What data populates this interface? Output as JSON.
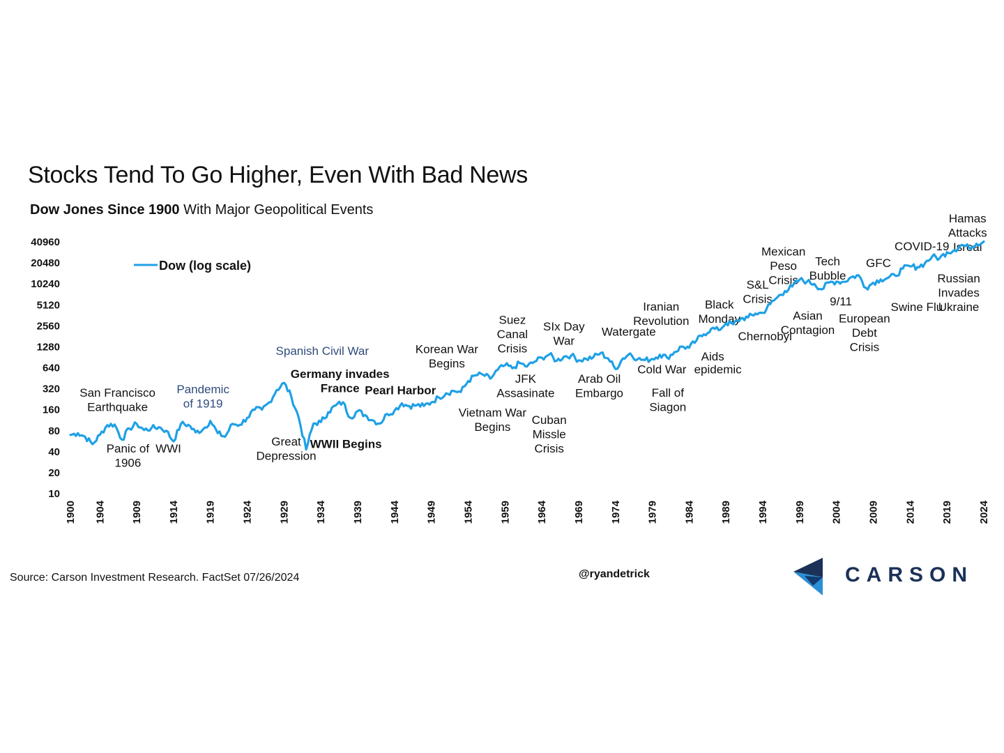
{
  "header": {
    "title": "Stocks Tend To Go Higher, Even With Bad News",
    "subtitle_bold": "Dow Jones Since 1900",
    "subtitle_rest": " With Major Geopolitical Events"
  },
  "footer": {
    "source": "Source: Carson Investment Research. FactSet 07/26/2024",
    "handle": "@ryandetrick",
    "logo_text": "CARSON"
  },
  "colors": {
    "line": "#1fa0e6",
    "logo_dark": "#1b3157",
    "logo_light": "#2b8fd6"
  },
  "chart_data": {
    "type": "line",
    "y_scale": "log2",
    "ylim": [
      10,
      40960
    ],
    "yticks": [
      "40960",
      "20480",
      "10240",
      "5120",
      "2560",
      "1280",
      "640",
      "320",
      "160",
      "80",
      "40",
      "20",
      "10"
    ],
    "xlim": [
      1900,
      2024
    ],
    "xticks": [
      "1900",
      "1904",
      "1909",
      "1914",
      "1919",
      "1924",
      "1929",
      "1934",
      "1939",
      "1944",
      "1949",
      "1954",
      "1959",
      "1964",
      "1969",
      "1974",
      "1979",
      "1984",
      "1989",
      "1994",
      "1999",
      "2004",
      "2009",
      "2014",
      "2019",
      "2024"
    ],
    "legend": "Dow (log scale)",
    "legend_position": "top-left",
    "series": [
      {
        "name": "Dow (log scale)",
        "points": [
          [
            1900,
            68
          ],
          [
            1901,
            72
          ],
          [
            1902,
            64
          ],
          [
            1903,
            50
          ],
          [
            1904,
            68
          ],
          [
            1905,
            94
          ],
          [
            1906,
            96
          ],
          [
            1907,
            58
          ],
          [
            1908,
            84
          ],
          [
            1909,
            98
          ],
          [
            1910,
            80
          ],
          [
            1911,
            85
          ],
          [
            1912,
            88
          ],
          [
            1913,
            78
          ],
          [
            1914,
            55
          ],
          [
            1915,
            98
          ],
          [
            1916,
            95
          ],
          [
            1917,
            74
          ],
          [
            1918,
            82
          ],
          [
            1919,
            108
          ],
          [
            1920,
            72
          ],
          [
            1921,
            64
          ],
          [
            1922,
            98
          ],
          [
            1923,
            95
          ],
          [
            1924,
            120
          ],
          [
            1925,
            156
          ],
          [
            1926,
            157
          ],
          [
            1927,
            200
          ],
          [
            1928,
            300
          ],
          [
            1929,
            380
          ],
          [
            1930,
            240
          ],
          [
            1931,
            120
          ],
          [
            1932,
            42
          ],
          [
            1933,
            99
          ],
          [
            1934,
            104
          ],
          [
            1935,
            144
          ],
          [
            1936,
            180
          ],
          [
            1937,
            200
          ],
          [
            1938,
            120
          ],
          [
            1939,
            150
          ],
          [
            1940,
            131
          ],
          [
            1941,
            111
          ],
          [
            1942,
            99
          ],
          [
            1943,
            136
          ],
          [
            1944,
            152
          ],
          [
            1945,
            193
          ],
          [
            1946,
            177
          ],
          [
            1947,
            181
          ],
          [
            1948,
            177
          ],
          [
            1949,
            200
          ],
          [
            1950,
            235
          ],
          [
            1951,
            269
          ],
          [
            1952,
            292
          ],
          [
            1953,
            281
          ],
          [
            1954,
            404
          ],
          [
            1955,
            488
          ],
          [
            1956,
            499
          ],
          [
            1957,
            436
          ],
          [
            1958,
            584
          ],
          [
            1959,
            679
          ],
          [
            1960,
            616
          ],
          [
            1961,
            731
          ],
          [
            1962,
            652
          ],
          [
            1963,
            763
          ],
          [
            1964,
            874
          ],
          [
            1965,
            969
          ],
          [
            1966,
            786
          ],
          [
            1967,
            905
          ],
          [
            1968,
            944
          ],
          [
            1969,
            800
          ],
          [
            1970,
            839
          ],
          [
            1971,
            890
          ],
          [
            1972,
            1020
          ],
          [
            1973,
            851
          ],
          [
            1974,
            600
          ],
          [
            1975,
            852
          ],
          [
            1976,
            1005
          ],
          [
            1977,
            831
          ],
          [
            1978,
            805
          ],
          [
            1979,
            839
          ],
          [
            1980,
            964
          ],
          [
            1981,
            875
          ],
          [
            1982,
            1047
          ],
          [
            1983,
            1259
          ],
          [
            1984,
            1212
          ],
          [
            1985,
            1547
          ],
          [
            1986,
            1896
          ],
          [
            1987,
            2276
          ],
          [
            1988,
            2169
          ],
          [
            1989,
            2753
          ],
          [
            1990,
            2634
          ],
          [
            1991,
            3169
          ],
          [
            1992,
            3301
          ],
          [
            1993,
            3754
          ],
          [
            1994,
            3834
          ],
          [
            1995,
            5117
          ],
          [
            1996,
            6448
          ],
          [
            1997,
            7908
          ],
          [
            1998,
            9181
          ],
          [
            1999,
            11497
          ],
          [
            2000,
            10787
          ],
          [
            2001,
            10022
          ],
          [
            2002,
            8342
          ],
          [
            2003,
            10454
          ],
          [
            2004,
            10783
          ],
          [
            2005,
            10718
          ],
          [
            2006,
            12463
          ],
          [
            2007,
            13265
          ],
          [
            2008,
            8776
          ],
          [
            2009,
            10428
          ],
          [
            2010,
            11578
          ],
          [
            2011,
            12218
          ],
          [
            2012,
            13104
          ],
          [
            2013,
            16577
          ],
          [
            2014,
            17823
          ],
          [
            2015,
            17425
          ],
          [
            2016,
            19763
          ],
          [
            2017,
            24719
          ],
          [
            2018,
            23327
          ],
          [
            2019,
            28538
          ],
          [
            2020,
            30606
          ],
          [
            2021,
            36338
          ],
          [
            2022,
            33147
          ],
          [
            2023,
            37690
          ],
          [
            2024,
            40590
          ]
        ]
      }
    ],
    "annotations": [
      {
        "lines": [
          "San Francisco",
          "Earthquake"
        ],
        "x": 1906.4,
        "y": 240,
        "style": "normal"
      },
      {
        "lines": [
          "Panic of",
          "1906"
        ],
        "x": 1907.8,
        "y": 38,
        "style": "normal"
      },
      {
        "lines": [
          "WWI"
        ],
        "x": 1913.3,
        "y": 38,
        "style": "normal"
      },
      {
        "lines": [
          "Pandemic",
          "of 1919"
        ],
        "x": 1918.0,
        "y": 270,
        "style": "blue"
      },
      {
        "lines": [
          "Great",
          "Depression"
        ],
        "x": 1929.3,
        "y": 48,
        "style": "normal"
      },
      {
        "lines": [
          "Spanish Civil War"
        ],
        "x": 1934.2,
        "y": 960,
        "style": "blue"
      },
      {
        "lines": [
          "Germany invades",
          "France"
        ],
        "x": 1936.6,
        "y": 450,
        "style": "bold"
      },
      {
        "lines": [
          "WWII Begins"
        ],
        "x": 1937.4,
        "y": 44,
        "style": "bold"
      },
      {
        "lines": [
          "Pearl Harbor"
        ],
        "x": 1944.8,
        "y": 260,
        "style": "bold"
      },
      {
        "lines": [
          "Korean War",
          "Begins"
        ],
        "x": 1951.1,
        "y": 1020,
        "style": "normal"
      },
      {
        "lines": [
          "Vietnam War",
          "Begins"
        ],
        "x": 1957.3,
        "y": 124,
        "style": "normal"
      },
      {
        "lines": [
          "Suez",
          "Canal",
          "Crisis"
        ],
        "x": 1960.0,
        "y": 2680,
        "style": "normal"
      },
      {
        "lines": [
          "JFK",
          "Assasinate"
        ],
        "x": 1961.8,
        "y": 380,
        "style": "normal"
      },
      {
        "lines": [
          "Cuban",
          "Missle",
          "Crisis"
        ],
        "x": 1965.0,
        "y": 98,
        "style": "normal"
      },
      {
        "lines": [
          "SIx Day",
          "War"
        ],
        "x": 1967.0,
        "y": 2140,
        "style": "normal"
      },
      {
        "lines": [
          "Arab Oil",
          "Embargo"
        ],
        "x": 1971.8,
        "y": 380,
        "style": "normal"
      },
      {
        "lines": [
          "Watergate"
        ],
        "x": 1975.8,
        "y": 1800,
        "style": "normal"
      },
      {
        "lines": [
          "Iranian",
          "Revolution"
        ],
        "x": 1980.2,
        "y": 4160,
        "style": "normal"
      },
      {
        "lines": [
          "Cold War"
        ],
        "x": 1980.3,
        "y": 520,
        "style": "normal"
      },
      {
        "lines": [
          "Fall of",
          "Siagon"
        ],
        "x": 1981.1,
        "y": 240,
        "style": "normal"
      },
      {
        "lines": [
          "epidemic"
        ],
        "x": 1987.9,
        "y": 520,
        "style": "normal"
      },
      {
        "lines": [
          "Aids"
        ],
        "x": 1987.2,
        "y": 800,
        "style": "normal"
      },
      {
        "lines": [
          "Black",
          "Monday"
        ],
        "x": 1988.1,
        "y": 4450,
        "style": "normal"
      },
      {
        "lines": [
          "Chernobyl"
        ],
        "x": 1994.3,
        "y": 1550,
        "style": "normal"
      },
      {
        "lines": [
          "S&L",
          "Crisis"
        ],
        "x": 1993.3,
        "y": 8500,
        "style": "normal"
      },
      {
        "lines": [
          "Mexican",
          "Peso",
          "Crisis"
        ],
        "x": 1996.8,
        "y": 25500,
        "style": "normal"
      },
      {
        "lines": [
          "Asian",
          "Contagion"
        ],
        "x": 2000.1,
        "y": 3050,
        "style": "normal"
      },
      {
        "lines": [
          "Tech",
          "Bubble"
        ],
        "x": 2002.8,
        "y": 18500,
        "style": "normal"
      },
      {
        "lines": [
          "9/11"
        ],
        "x": 2004.6,
        "y": 4900,
        "style": "normal"
      },
      {
        "lines": [
          "European",
          "Debt",
          "Crisis"
        ],
        "x": 2007.8,
        "y": 2800,
        "style": "normal"
      },
      {
        "lines": [
          "GFC"
        ],
        "x": 2009.7,
        "y": 17500,
        "style": "normal"
      },
      {
        "lines": [
          "Swine Flu"
        ],
        "x": 2014.9,
        "y": 4100,
        "style": "normal"
      },
      {
        "lines": [
          "COVID-19"
        ],
        "x": 2015.6,
        "y": 30500,
        "style": "normal"
      },
      {
        "lines": [
          "Hamas",
          "Attacks",
          "Isreal"
        ],
        "x": 2021.8,
        "y": 76000,
        "style": "normal"
      },
      {
        "lines": [
          "Russian",
          "Invades",
          "Ukraine"
        ],
        "x": 2020.6,
        "y": 10500,
        "style": "normal"
      }
    ]
  }
}
